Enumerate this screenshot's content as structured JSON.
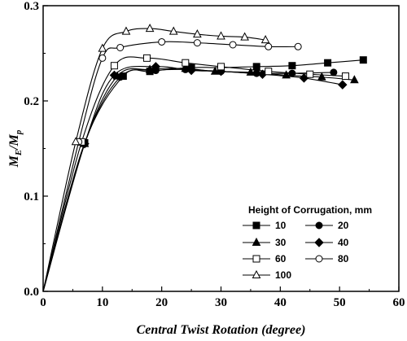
{
  "chart_data": {
    "type": "line",
    "title": "",
    "xlabel": "Central Twist Rotation (degree)",
    "ylabel": {
      "main": "M",
      "sub1": "E",
      "sep": "/M",
      "sub2": "p"
    },
    "xlim": [
      0,
      60
    ],
    "ylim": [
      0,
      0.3
    ],
    "xticks": [
      "0",
      "10",
      "20",
      "30",
      "40",
      "50",
      "60"
    ],
    "yticks": [
      "0.0",
      "0.1",
      "0.2",
      "0.3"
    ],
    "grid": false,
    "legend": {
      "title": "Height of Corrugation, mm",
      "position": "lower-right"
    },
    "series": [
      {
        "name": "10",
        "marker": "filled-square",
        "x": [
          0,
          7,
          13.5,
          18,
          25,
          30,
          36,
          42,
          48,
          54
        ],
        "y": [
          0,
          0.156,
          0.226,
          0.231,
          0.235,
          0.235,
          0.236,
          0.237,
          0.24,
          0.243
        ]
      },
      {
        "name": "20",
        "marker": "filled-circle",
        "x": [
          0,
          7,
          13,
          19,
          24,
          30,
          36,
          42,
          49
        ],
        "y": [
          0,
          0.155,
          0.225,
          0.232,
          0.233,
          0.231,
          0.229,
          0.229,
          0.23
        ]
      },
      {
        "name": "30",
        "marker": "filled-triangle",
        "x": [
          0,
          7,
          12.5,
          18,
          24,
          29,
          35,
          41,
          47,
          52.5
        ],
        "y": [
          0,
          0.155,
          0.226,
          0.233,
          0.234,
          0.231,
          0.23,
          0.227,
          0.225,
          0.222
        ]
      },
      {
        "name": "40",
        "marker": "filled-diamond",
        "x": [
          0,
          7,
          12,
          19,
          25,
          30,
          37,
          44,
          50.5
        ],
        "y": [
          0,
          0.155,
          0.227,
          0.236,
          0.232,
          0.231,
          0.228,
          0.224,
          0.217
        ]
      },
      {
        "name": "60",
        "marker": "open-square",
        "x": [
          0,
          6.5,
          12,
          17.5,
          24,
          30,
          38,
          45,
          51
        ],
        "y": [
          0,
          0.157,
          0.237,
          0.245,
          0.24,
          0.236,
          0.231,
          0.228,
          0.226
        ]
      },
      {
        "name": "80",
        "marker": "open-circle",
        "x": [
          0,
          6,
          10,
          13,
          20,
          26,
          32,
          38,
          43
        ],
        "y": [
          0,
          0.157,
          0.245,
          0.256,
          0.262,
          0.261,
          0.259,
          0.257,
          0.257
        ]
      },
      {
        "name": "100",
        "marker": "open-triangle",
        "x": [
          0,
          5.5,
          10,
          14,
          18,
          22,
          26,
          30,
          34,
          37.5
        ],
        "y": [
          0,
          0.157,
          0.255,
          0.273,
          0.276,
          0.273,
          0.27,
          0.268,
          0.267,
          0.264
        ]
      }
    ]
  }
}
